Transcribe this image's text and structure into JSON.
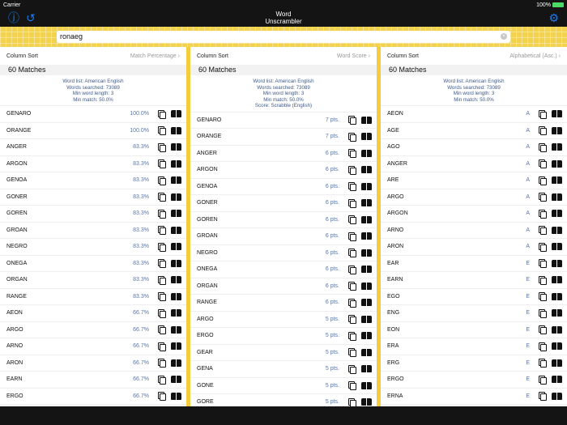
{
  "status": {
    "carrier": "Carrier",
    "battery": "100%"
  },
  "nav": {
    "title_line1": "Word",
    "title_line2": "Unscrambler",
    "help_icon": "question-icon",
    "history_icon": "history-icon",
    "settings_icon": "gear-icon"
  },
  "search": {
    "value": "ronaeg"
  },
  "columns": [
    {
      "sort_label": "Column Sort",
      "sort_value": "Match Percentage",
      "matches": "60 Matches",
      "info": [
        "Word list: American English",
        "Words searched: 73089",
        "Min word length: 3",
        "Min match: 50.0%"
      ],
      "rows": [
        [
          "GENARO",
          "100.0%"
        ],
        [
          "ORANGE",
          "100.0%"
        ],
        [
          "ANGER",
          "83.3%"
        ],
        [
          "ARGON",
          "83.3%"
        ],
        [
          "GENOA",
          "83.3%"
        ],
        [
          "GONER",
          "83.3%"
        ],
        [
          "GOREN",
          "83.3%"
        ],
        [
          "GROAN",
          "83.3%"
        ],
        [
          "NEGRO",
          "83.3%"
        ],
        [
          "ONEGA",
          "83.3%"
        ],
        [
          "ORGAN",
          "83.3%"
        ],
        [
          "RANGE",
          "83.3%"
        ],
        [
          "AEON",
          "66.7%"
        ],
        [
          "ARGO",
          "66.7%"
        ],
        [
          "ARNO",
          "66.7%"
        ],
        [
          "ARON",
          "66.7%"
        ],
        [
          "EARN",
          "66.7%"
        ],
        [
          "ERGO",
          "66.7%"
        ]
      ]
    },
    {
      "sort_label": "Column Sort",
      "sort_value": "Word Score",
      "matches": "60 Matches",
      "info": [
        "Word list: American English",
        "Words searched: 73089",
        "Min word length: 3",
        "Min match: 50.0%",
        "Score: Scrabble (English)"
      ],
      "rows": [
        [
          "GENARO",
          "7 pts."
        ],
        [
          "ORANGE",
          "7 pts."
        ],
        [
          "ANGER",
          "6 pts."
        ],
        [
          "ARGON",
          "6 pts."
        ],
        [
          "GENOA",
          "6 pts."
        ],
        [
          "GONER",
          "6 pts."
        ],
        [
          "GOREN",
          "6 pts."
        ],
        [
          "GROAN",
          "6 pts."
        ],
        [
          "NEGRO",
          "6 pts."
        ],
        [
          "ONEGA",
          "6 pts."
        ],
        [
          "ORGAN",
          "6 pts."
        ],
        [
          "RANGE",
          "6 pts."
        ],
        [
          "ARGO",
          "5 pts."
        ],
        [
          "ERGO",
          "5 pts."
        ],
        [
          "GEAR",
          "5 pts."
        ],
        [
          "GENA",
          "5 pts."
        ],
        [
          "GONE",
          "5 pts."
        ],
        [
          "GORE",
          "5 pts."
        ]
      ]
    },
    {
      "sort_label": "Column Sort",
      "sort_value": "Alphabetical (Asc.)",
      "matches": "60 Matches",
      "info": [
        "Word list: American English",
        "Words searched: 73089",
        "Min word length: 3",
        "Min match: 50.0%"
      ],
      "rows": [
        [
          "AEON",
          "A"
        ],
        [
          "AGE",
          "A"
        ],
        [
          "AGO",
          "A"
        ],
        [
          "ANGER",
          "A"
        ],
        [
          "ARE",
          "A"
        ],
        [
          "ARGO",
          "A"
        ],
        [
          "ARGON",
          "A"
        ],
        [
          "ARNO",
          "A"
        ],
        [
          "ARON",
          "A"
        ],
        [
          "EAR",
          "E"
        ],
        [
          "EARN",
          "E"
        ],
        [
          "EGO",
          "E"
        ],
        [
          "ENG",
          "E"
        ],
        [
          "EON",
          "E"
        ],
        [
          "ERA",
          "E"
        ],
        [
          "ERG",
          "E"
        ],
        [
          "ERGO",
          "E"
        ],
        [
          "ERNA",
          "E"
        ]
      ]
    }
  ]
}
